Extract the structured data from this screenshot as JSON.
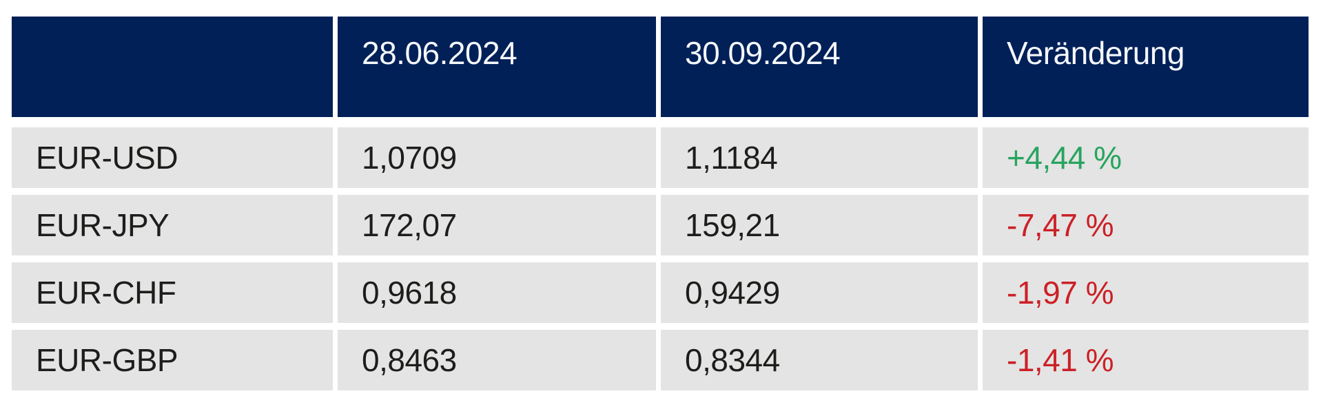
{
  "table": {
    "columns": [
      "",
      "28.06.2024",
      "30.09.2024",
      "Veränderung"
    ],
    "rows": [
      {
        "label": "EUR-USD",
        "start": "1,0709",
        "end": "1,1184",
        "change": "+4,44 %",
        "direction": "up"
      },
      {
        "label": "EUR-JPY",
        "start": "172,07",
        "end": "159,21",
        "change": "-7,47 %",
        "direction": "down"
      },
      {
        "label": "EUR-CHF",
        "start": "0,9618",
        "end": "0,9429",
        "change": "-1,97 %",
        "direction": "down"
      },
      {
        "label": "EUR-GBP",
        "start": "0,8463",
        "end": "0,8344",
        "change": "-1,41 %",
        "direction": "down"
      }
    ]
  },
  "colors": {
    "header_bg": "#022058",
    "header_text": "#f5f8fc",
    "cell_bg": "#e4e4e4",
    "text": "#1d1d1b",
    "positive": "#27a45e",
    "negative": "#cb2026",
    "page_bg": "#ffffff"
  },
  "chart_data": {
    "type": "table",
    "title": "",
    "columns": [
      "",
      "28.06.2024",
      "30.09.2024",
      "Veränderung"
    ],
    "rows": [
      [
        "EUR-USD",
        "1,0709",
        "1,1184",
        "+4,44 %"
      ],
      [
        "EUR-JPY",
        "172,07",
        "159,21",
        "-7,47 %"
      ],
      [
        "EUR-CHF",
        "0,9618",
        "0,9429",
        "-1,97 %"
      ],
      [
        "EUR-GBP",
        "0,8463",
        "0,8344",
        "-1,41 %"
      ]
    ],
    "series": [
      {
        "name": "28.06.2024",
        "values": [
          1.0709,
          172.07,
          0.9618,
          0.8463
        ]
      },
      {
        "name": "30.09.2024",
        "values": [
          1.1184,
          159.21,
          0.9429,
          0.8344
        ]
      },
      {
        "name": "Veränderung %",
        "values": [
          4.44,
          -7.47,
          -1.97,
          -1.41
        ]
      }
    ],
    "categories": [
      "EUR-USD",
      "EUR-JPY",
      "EUR-CHF",
      "EUR-GBP"
    ]
  }
}
